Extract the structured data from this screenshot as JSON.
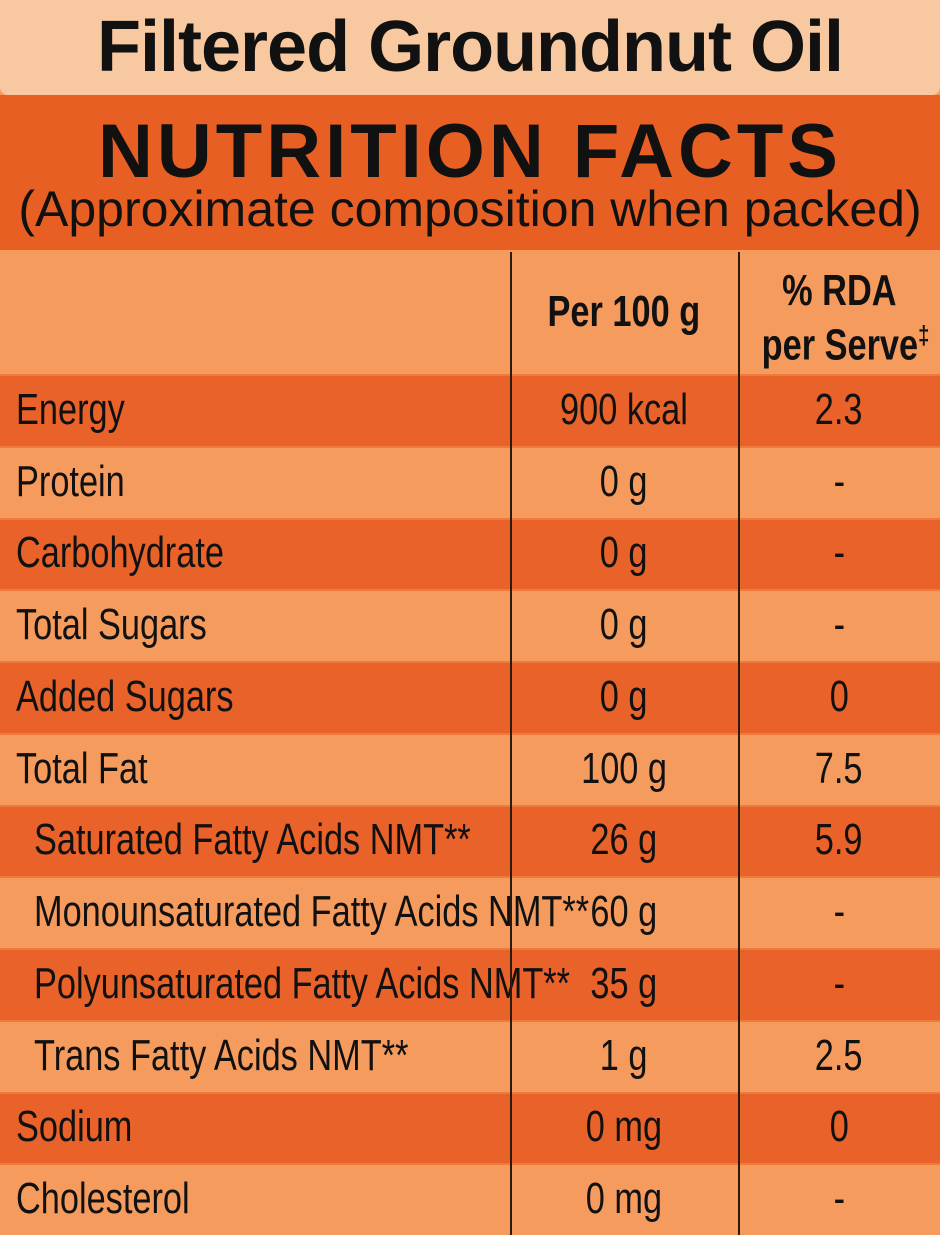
{
  "header": {
    "title": "Filtered Groundnut Oil",
    "heading": "NUTRITION FACTS",
    "subtitle": "(Approximate composition when packed)"
  },
  "table": {
    "columns": {
      "per_100g": "Per 100 g",
      "rda": [
        "% RDA",
        "per Serve"
      ],
      "rda_marker": "‡"
    },
    "rows": [
      {
        "label": "Energy",
        "per_100g": "900 kcal",
        "rda": "2.3"
      },
      {
        "label": "Protein",
        "per_100g": "0 g",
        "rda": "-"
      },
      {
        "label": "Carbohydrate",
        "per_100g": "0 g",
        "rda": "-"
      },
      {
        "label": "Total Sugars",
        "per_100g": "0 g",
        "rda": "-"
      },
      {
        "label": "Added Sugars",
        "per_100g": "0 g",
        "rda": "0"
      },
      {
        "label": "Total Fat",
        "per_100g": "100 g",
        "rda": "7.5"
      },
      {
        "label": "Saturated Fatty Acids NMT**",
        "per_100g": "26 g",
        "rda": "5.9",
        "indent": true
      },
      {
        "label": "Monounsaturated Fatty Acids NMT**",
        "per_100g": "60 g",
        "rda": "-",
        "indent": true
      },
      {
        "label": "Polyunsaturated Fatty Acids NMT**",
        "per_100g": "35 g",
        "rda": "-",
        "indent": true
      },
      {
        "label": "Trans Fatty Acids NMT**",
        "per_100g": "1 g",
        "rda": "2.5",
        "indent": true
      },
      {
        "label": "Sodium",
        "per_100g": "0 mg",
        "rda": "0"
      },
      {
        "label": "Cholesterol",
        "per_100g": "0 mg",
        "rda": "-"
      }
    ]
  }
}
